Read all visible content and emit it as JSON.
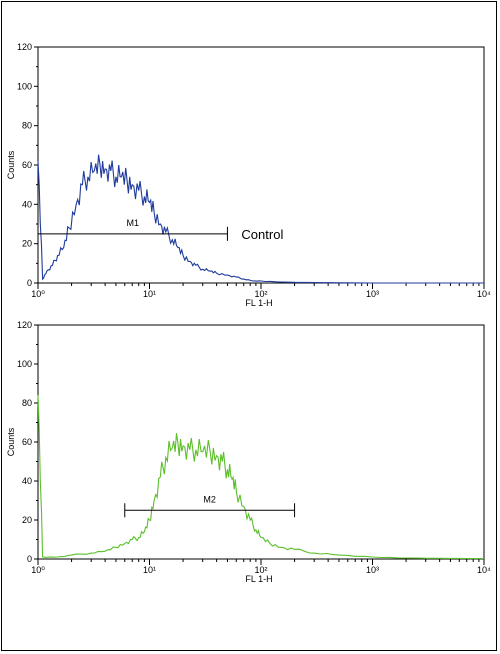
{
  "chart_data": [
    {
      "type": "line",
      "xlabel": "FL 1-H",
      "ylabel": "Counts",
      "x_scale": "log",
      "xlim": [
        1,
        10000
      ],
      "ylim": [
        0,
        120
      ],
      "x_tick_labels": [
        "10⁰",
        "10¹",
        "10²",
        "10³",
        "10⁴"
      ],
      "y_tick_labels": [
        "0",
        "20",
        "40",
        "60",
        "80",
        "100",
        "120"
      ],
      "grid": false,
      "series": [
        {
          "color": "#1f3b9c",
          "x": [
            1.0,
            1.1,
            1.2,
            1.35,
            1.5,
            1.7,
            1.9,
            2.2,
            2.5,
            2.8,
            3.2,
            3.6,
            4.0,
            4.5,
            5.0,
            5.6,
            6.3,
            7.0,
            8.0,
            9.0,
            10,
            11,
            12.5,
            14,
            16,
            18,
            20,
            23,
            26,
            30,
            35,
            40,
            50,
            60,
            70,
            85,
            100,
            150,
            300,
            1000,
            10000
          ],
          "y": [
            62,
            2,
            6,
            9,
            14,
            18,
            28,
            40,
            50,
            54,
            57,
            60,
            58,
            57,
            54,
            54,
            52,
            50,
            47,
            44,
            41,
            36,
            30,
            26,
            22,
            18,
            14,
            11,
            9,
            7,
            6,
            5,
            4,
            3,
            2,
            1,
            1,
            0.5,
            0.2,
            0,
            0
          ]
        }
      ],
      "markers": [
        {
          "label": "M1",
          "x_range": [
            1,
            50
          ],
          "y": 25
        }
      ],
      "annotations": [
        "Control"
      ]
    },
    {
      "type": "line",
      "xlabel": "FL 1-H",
      "ylabel": "Counts",
      "x_scale": "log",
      "xlim": [
        1,
        10000
      ],
      "ylim": [
        0,
        120
      ],
      "x_tick_labels": [
        "10⁰",
        "10¹",
        "10²",
        "10³",
        "10⁴"
      ],
      "y_tick_labels": [
        "0",
        "20",
        "40",
        "60",
        "80",
        "100",
        "120"
      ],
      "grid": false,
      "series": [
        {
          "color": "#5bbf2a",
          "x": [
            1.0,
            1.1,
            1.5,
            2.0,
            3.0,
            4.0,
            5.0,
            6.0,
            7.0,
            8.0,
            9.0,
            10,
            11,
            12.5,
            14,
            16,
            18,
            20,
            23,
            26,
            30,
            35,
            40,
            45,
            50,
            55,
            60,
            70,
            80,
            90,
            100,
            120,
            150,
            200,
            300,
            500,
            1000,
            2000,
            5000,
            10000
          ],
          "y": [
            84,
            1,
            1,
            2,
            3,
            4,
            6,
            8,
            10,
            11,
            14,
            20,
            30,
            42,
            52,
            57,
            59,
            58,
            56,
            56,
            55,
            55,
            53,
            50,
            46,
            41,
            35,
            27,
            20,
            15,
            11,
            8,
            6,
            5,
            3,
            2,
            1,
            0.5,
            0.3,
            0.2
          ]
        }
      ],
      "markers": [
        {
          "label": "M2",
          "x_range": [
            6,
            200
          ],
          "y": 25
        }
      ],
      "annotations": []
    }
  ]
}
